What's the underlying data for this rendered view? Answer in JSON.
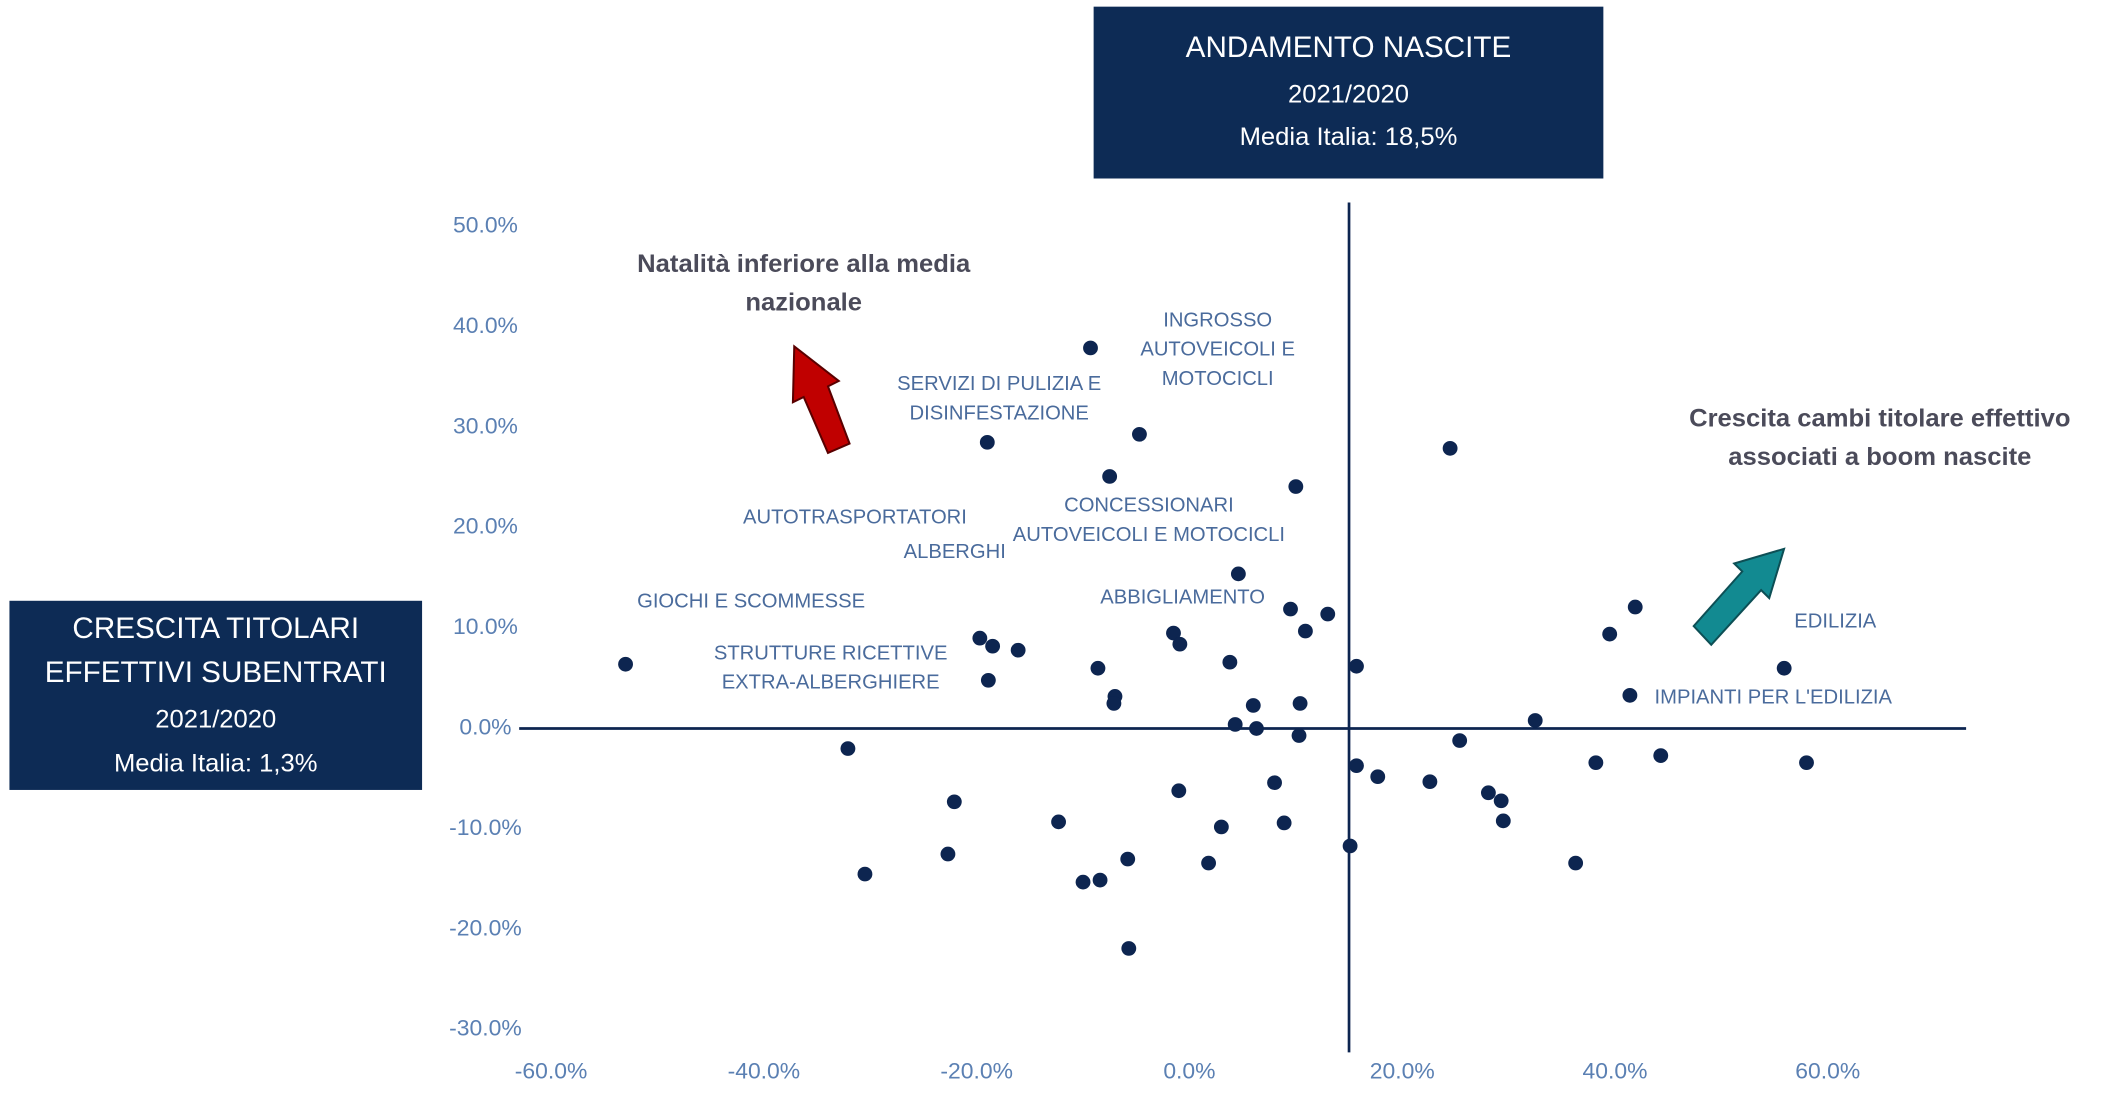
{
  "chart_data": {
    "type": "scatter",
    "boxes": {
      "top": [
        "ANDAMENTO NASCITE",
        "2021/2020",
        "Media Italia: 18,5%"
      ],
      "left": [
        "CRESCITA TITOLARI",
        "EFFETTIVI SUBENTRATI",
        "2021/2020",
        "Media Italia: 1,3%"
      ]
    },
    "headings": [
      [
        "Natalità inferiore alla media",
        "nazionale"
      ],
      [
        "Crescita cambi titolare effettivo",
        "associati  a boom nascite"
      ]
    ],
    "annotations": [
      [
        "GIOCHI E SCOMMESSE"
      ],
      [
        "STRUTTURE RICETTIVE",
        "EXTRA-ALBERGHIERE"
      ],
      [
        "AUTOTRASPORTATORI"
      ],
      [
        "ALBERGHI"
      ],
      [
        "SERVIZI DI PULIZIA E",
        "DISINFESTAZIONE"
      ],
      [
        "INGROSSO",
        "AUTOVEICOLI E",
        "MOTOCICLI"
      ],
      [
        "CONCESSIONARI",
        "AUTOVEICOLI E MOTOCICLI"
      ],
      [
        "ABBIGLIAMENTO"
      ],
      [
        "EDILIZIA"
      ],
      [
        "IMPIANTI PER L'EDILIZIA"
      ]
    ],
    "xlim": [
      -63,
      73
    ],
    "ylim": [
      -30,
      50
    ],
    "xticks": [
      {
        "value": -60,
        "label": "-60.0%"
      },
      {
        "value": -40,
        "label": "-40.0%"
      },
      {
        "value": -20,
        "label": "-20.0%"
      },
      {
        "value": 0,
        "label": "0.0%"
      },
      {
        "value": 20,
        "label": "20.0%"
      },
      {
        "value": 40,
        "label": "40.0%"
      },
      {
        "value": 60,
        "label": "60.0%"
      }
    ],
    "yticks": [
      {
        "value": -30,
        "label": "-30.0%"
      },
      {
        "value": -20,
        "label": "-20.0%"
      },
      {
        "value": -10,
        "label": "-10.0%"
      },
      {
        "value": 0,
        "label": "0.0%"
      },
      {
        "value": 10,
        "label": "10.0%"
      },
      {
        "value": 20,
        "label": "20.0%"
      },
      {
        "value": 30,
        "label": "30.0%"
      },
      {
        "value": 40,
        "label": "40.0%"
      },
      {
        "value": 50,
        "label": "50.0%"
      }
    ],
    "x_axis_cross": 0,
    "y_axis_cross": 15,
    "color": "#0d2550",
    "x": [
      -53.0,
      -32.1,
      -30.5,
      -22.1,
      -22.7,
      -19.7,
      -18.5,
      -18.9,
      -19.0,
      -16.1,
      -12.3,
      -10.0,
      -8.4,
      -9.3,
      -8.6,
      -7.5,
      -7.0,
      -7.1,
      -5.8,
      -5.7,
      -4.7,
      -1.5,
      -0.9,
      -1.0,
      1.8,
      3.0,
      3.8,
      4.3,
      4.6,
      6.0,
      6.3,
      8.0,
      8.9,
      9.5,
      10.0,
      10.4,
      10.3,
      10.9,
      13.0,
      15.1,
      15.7,
      15.7,
      17.7,
      22.6,
      24.5,
      25.4,
      28.1,
      29.3,
      29.5,
      32.5,
      36.3,
      38.2,
      39.5,
      41.4,
      41.9,
      44.3,
      55.9,
      58.0
    ],
    "values": [
      6.4,
      -2.0,
      -14.5,
      -7.3,
      -12.5,
      9.0,
      8.2,
      4.8,
      28.5,
      7.8,
      -9.3,
      -15.3,
      -15.1,
      37.9,
      6.0,
      25.1,
      3.2,
      2.5,
      -13.0,
      -21.9,
      29.3,
      9.5,
      8.4,
      -6.2,
      -13.4,
      -9.8,
      6.6,
      0.4,
      15.4,
      2.3,
      0.0,
      -5.4,
      -9.4,
      11.9,
      24.1,
      2.5,
      -0.7,
      9.7,
      11.4,
      -11.7,
      6.2,
      -3.7,
      -4.8,
      -5.3,
      27.9,
      -1.2,
      -6.4,
      -7.2,
      -9.2,
      0.8,
      -13.4,
      -3.4,
      9.4,
      3.3,
      12.1,
      -2.7,
      6.0,
      -3.4
    ]
  }
}
